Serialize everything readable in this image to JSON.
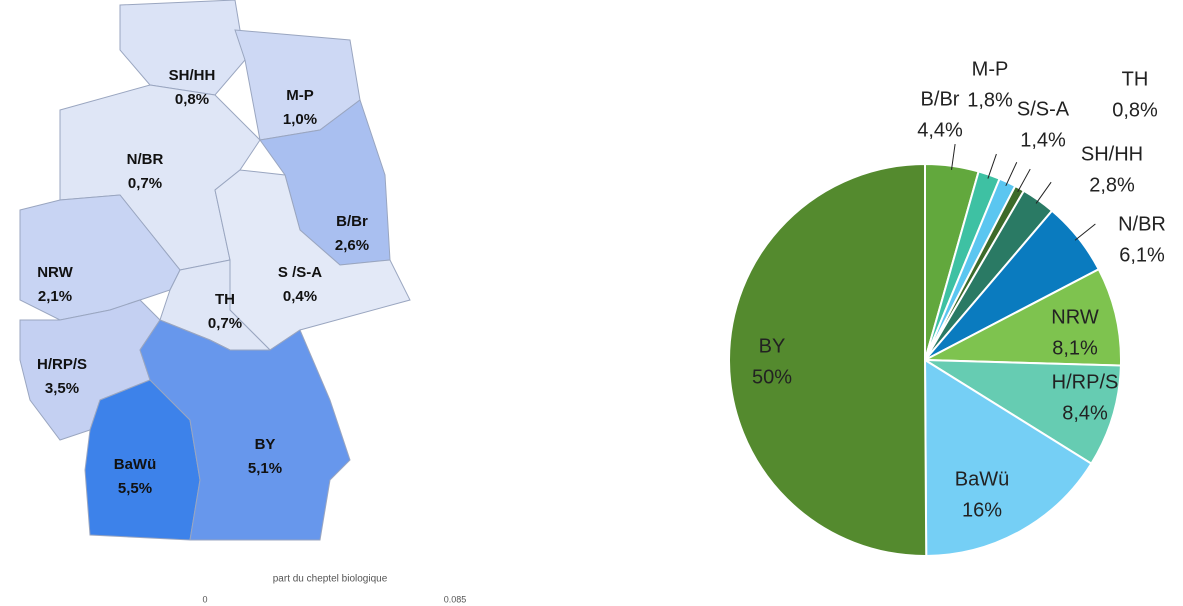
{
  "chart_data": [
    {
      "type": "map",
      "categories": [
        "SH/HH",
        "M-P",
        "N/BR",
        "B/Br",
        "NRW",
        "S /S-A",
        "TH",
        "H/RP/S",
        "BaWü",
        "BY"
      ],
      "values": [
        0.8,
        1.0,
        0.7,
        2.6,
        2.1,
        0.4,
        0.7,
        3.5,
        5.5,
        5.1
      ],
      "value_labels": [
        "0,8%",
        "1,0%",
        "0,7%",
        "2,6%",
        "2,1%",
        "0,4%",
        "0,7%",
        "3,5%",
        "5,5%",
        "5,1%"
      ],
      "colors": [
        "#dbe3f6",
        "#cdd8f4",
        "#dfe6f6",
        "#a9bff0",
        "#c8d4f3",
        "#e3e9f7",
        "#dfe6f6",
        "#c4d0f2",
        "#3d82ea",
        "#6797ec"
      ],
      "colorbar": {
        "title": "part du cheptel biologique",
        "lim": [
          0,
          0.085
        ],
        "ticks": [
          0,
          0.085
        ]
      }
    },
    {
      "type": "pie",
      "categories": [
        "B/Br",
        "M-P",
        "S/S-A",
        "TH",
        "SH/HH",
        "N/BR",
        "NRW",
        "H/RP/S",
        "BaWü",
        "BY"
      ],
      "values": [
        4.4,
        1.8,
        1.4,
        0.8,
        2.8,
        6.1,
        8.1,
        8.4,
        16,
        50
      ],
      "value_labels": [
        "4,4%",
        "1,8%",
        "1,4%",
        "0,8%",
        "2,8%",
        "6,1%",
        "8,1%",
        "8,4%",
        "16%",
        "50%"
      ],
      "colors": [
        "#62a83d",
        "#3ec1a3",
        "#5bc6f0",
        "#3d6b2a",
        "#2a7a64",
        "#0a7bbf",
        "#7ec34f",
        "#66ccb2",
        "#75cff5",
        "#548a2e"
      ]
    }
  ]
}
